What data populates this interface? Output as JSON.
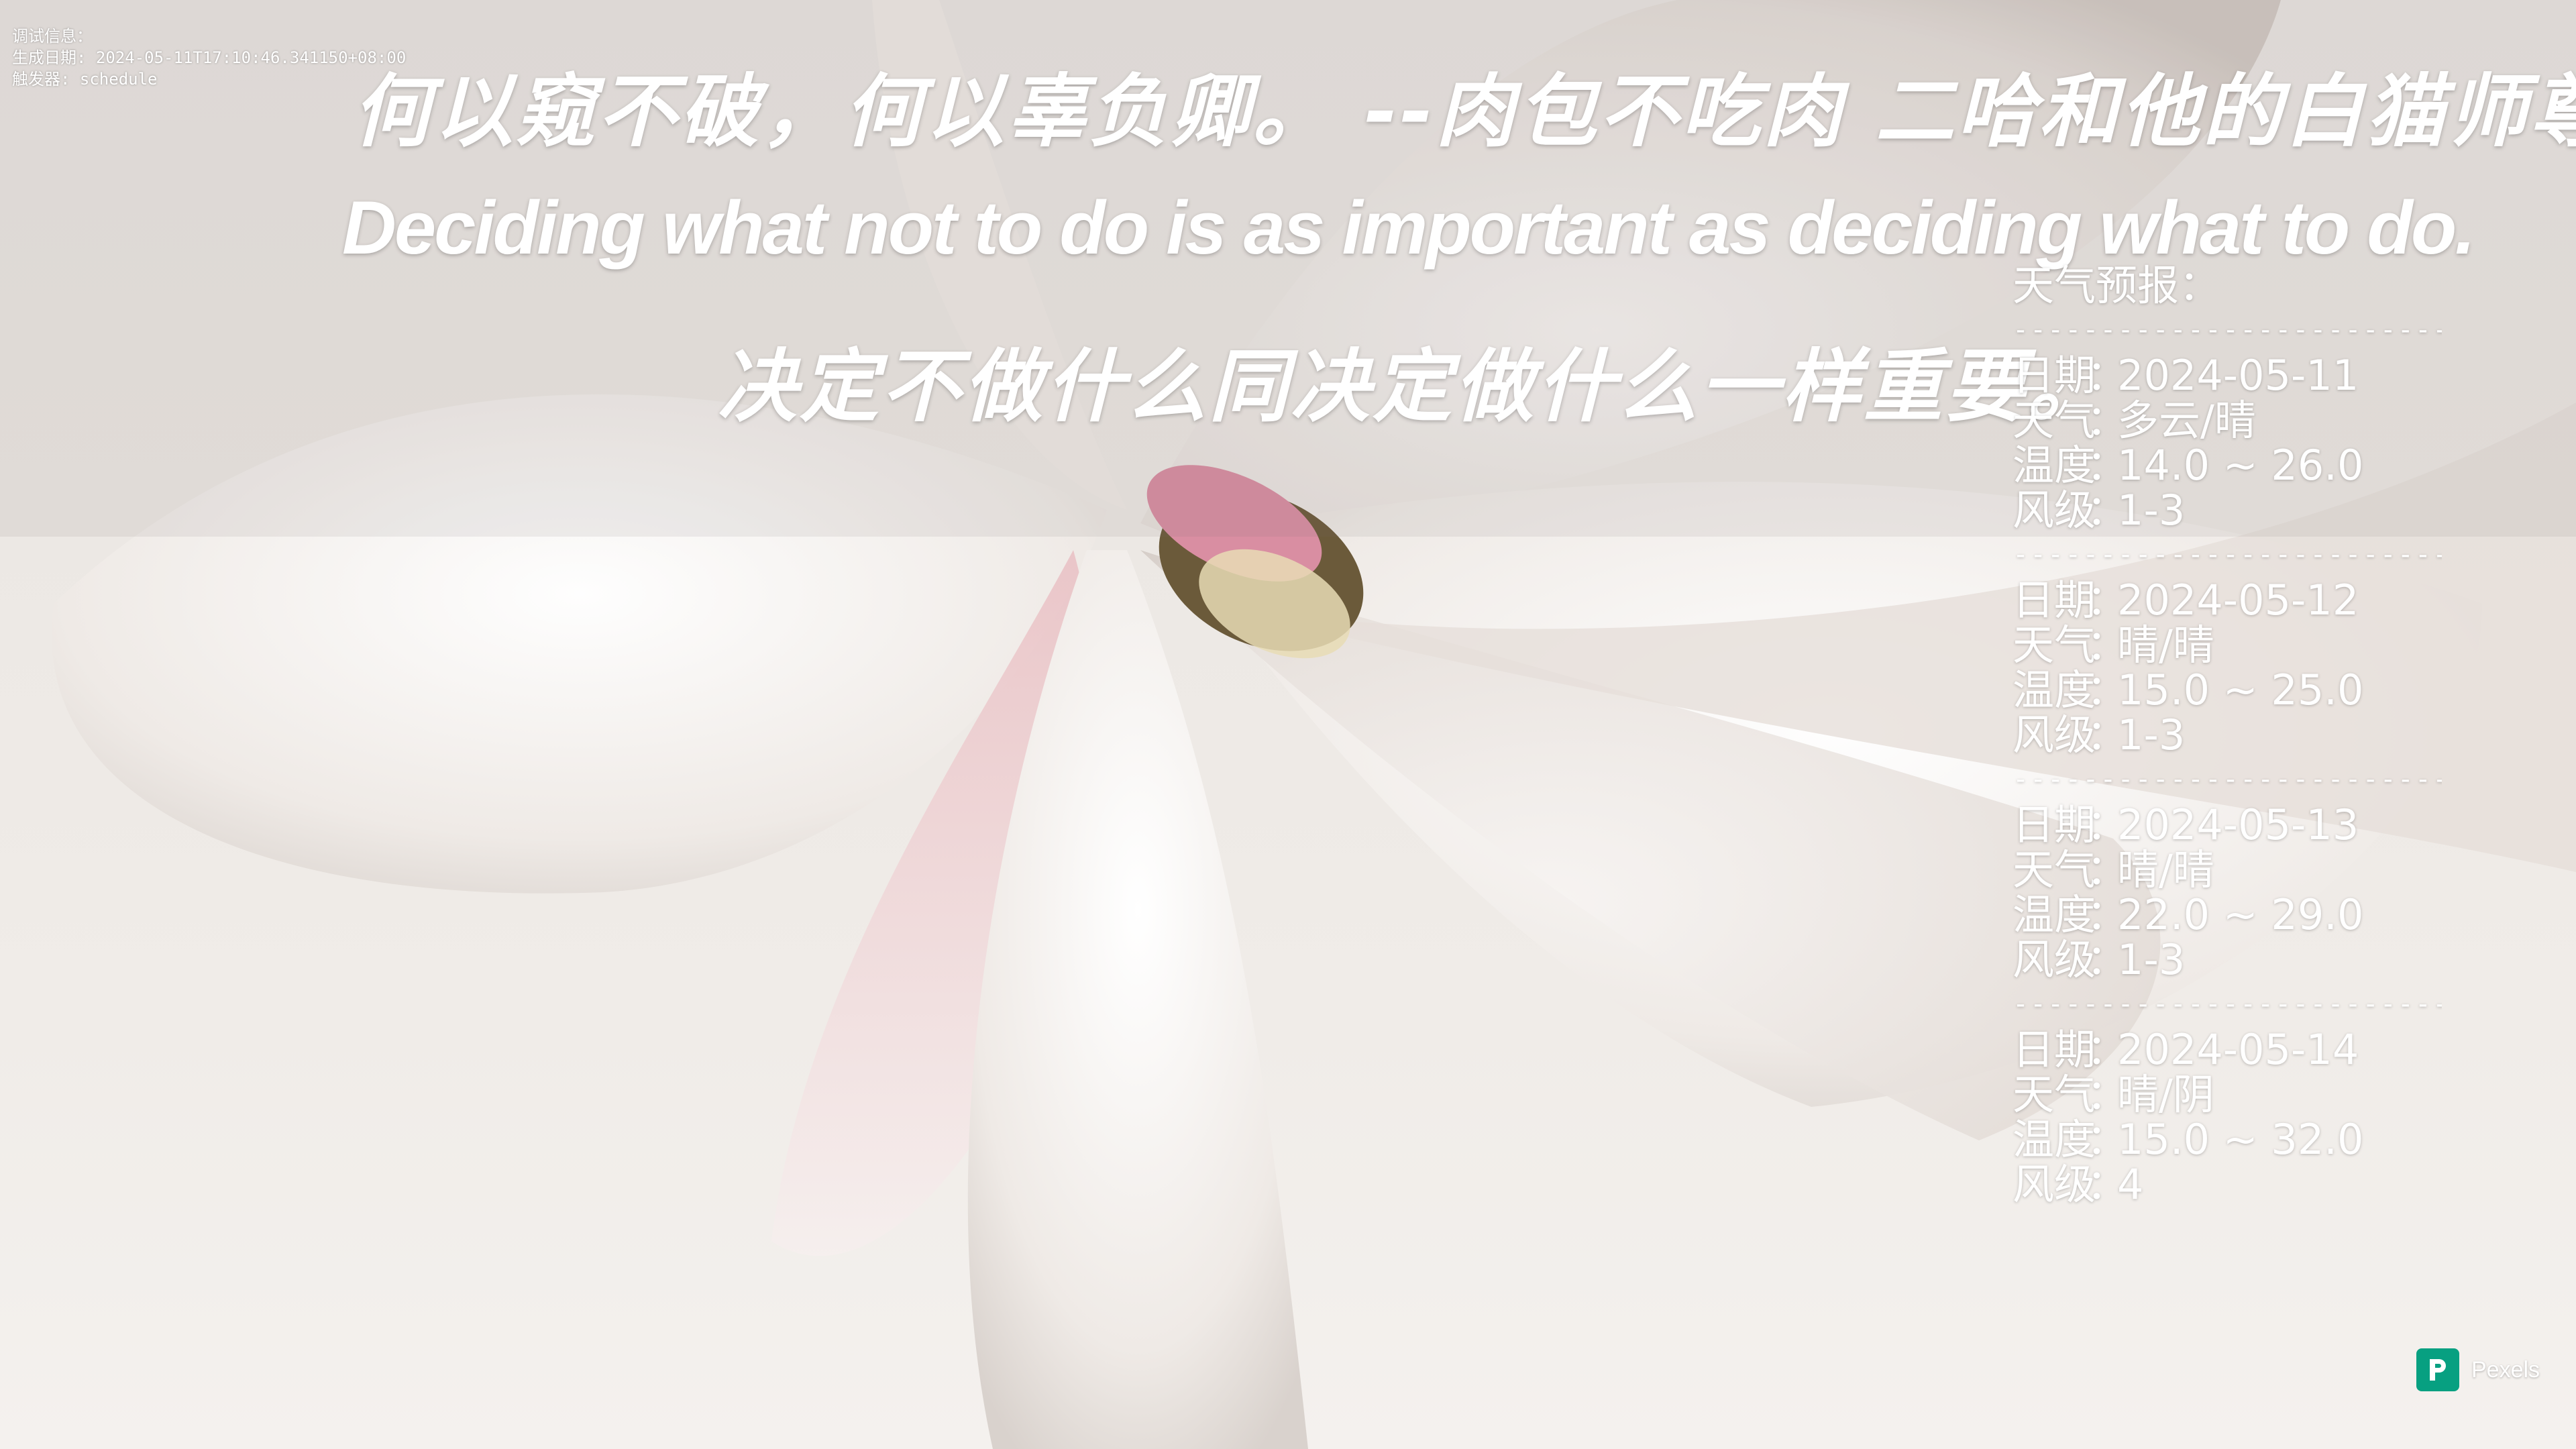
{
  "debug": {
    "line1": "调试信息：",
    "line2": "生成日期: 2024-05-11T17:10:46.341150+08:00",
    "line3": "触发器: schedule"
  },
  "quote": {
    "zh_line": "何以窥不破，何以辜负卿。  --肉包不吃肉 二哈和他的白猫师尊",
    "en_line": "Deciding what not to do is as important as deciding what to do.",
    "zh_translation": "决定不做什么同决定做什么一样重要。"
  },
  "weather": {
    "title": "天气预报：",
    "separator": "-----------------------------",
    "labels": {
      "date": "日期",
      "weather": "天气",
      "temp": "温度",
      "wind": "风级"
    },
    "colon": "：",
    "days": [
      {
        "date": "2024-05-11",
        "weather": "多云/晴",
        "temp": "14.0 ~ 26.0",
        "wind": "1-3"
      },
      {
        "date": "2024-05-12",
        "weather": "晴/晴",
        "temp": "15.0 ~ 25.0",
        "wind": "1-3"
      },
      {
        "date": "2024-05-13",
        "weather": "晴/晴",
        "temp": "22.0 ~ 29.0",
        "wind": "1-3"
      },
      {
        "date": "2024-05-14",
        "weather": "晴/阴",
        "temp": "15.0 ~ 32.0",
        "wind": "4"
      }
    ]
  },
  "watermark": {
    "label": "Pexels",
    "icon": "pexels-logo-icon",
    "color": "#07a081"
  },
  "colors": {
    "text": "#ffffff",
    "background": "#ece8e4"
  }
}
